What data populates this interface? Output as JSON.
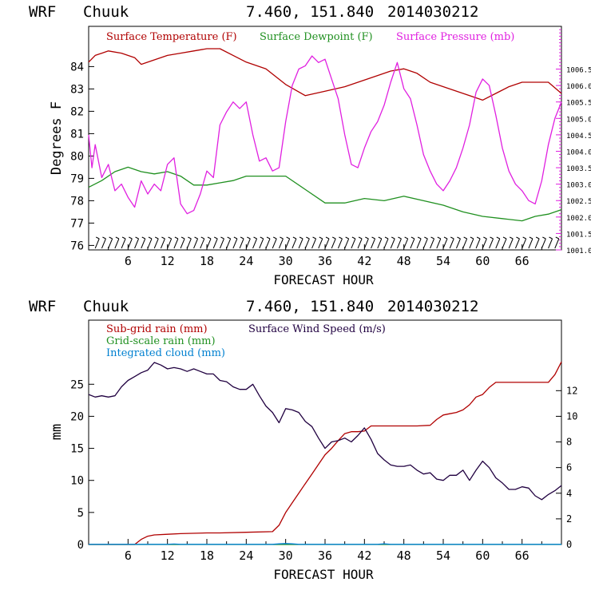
{
  "charts": [
    {
      "type": "line",
      "header": {
        "model": "WRF",
        "station": "Chuuk",
        "coords": "7.460, 151.840",
        "run": "2014030212"
      },
      "xlabel": "FORECAST HOUR",
      "ylabel": "Degrees F",
      "xlim": [
        0,
        72
      ],
      "xticks": [
        6,
        12,
        18,
        24,
        30,
        36,
        42,
        48,
        54,
        60,
        66
      ],
      "ylim_left": [
        75.8,
        85.8
      ],
      "yticks_left": [
        76,
        77,
        78,
        79,
        80,
        81,
        82,
        83,
        84
      ],
      "ylim_right": [
        1001.0,
        1007.8
      ],
      "yticks_right": [
        "1001.0",
        "1001.5",
        "1002.0",
        "1002.5",
        "1003.0",
        "1003.5",
        "1004.0",
        "1004.5",
        "1005.0",
        "1005.5",
        "1006.0",
        "1006.5"
      ],
      "wind_barbs": true,
      "series": [
        {
          "name": "Surface Temperature (F)",
          "color": "#b00000",
          "axis": "left",
          "x": [
            0,
            1,
            3,
            5,
            7,
            8,
            10,
            12,
            14,
            16,
            18,
            20,
            22,
            24,
            27,
            30,
            33,
            36,
            39,
            42,
            44,
            46,
            48,
            50,
            52,
            55,
            58,
            60,
            62,
            64,
            66,
            68,
            70,
            72
          ],
          "y": [
            84.2,
            84.5,
            84.7,
            84.6,
            84.4,
            84.1,
            84.3,
            84.5,
            84.6,
            84.7,
            84.8,
            84.8,
            84.5,
            84.2,
            83.9,
            83.2,
            82.7,
            82.9,
            83.1,
            83.4,
            83.6,
            83.8,
            83.9,
            83.7,
            83.3,
            83.0,
            82.7,
            82.5,
            82.8,
            83.1,
            83.3,
            83.3,
            83.3,
            82.8
          ]
        },
        {
          "name": "Surface Dewpoint (F)",
          "color": "#209020",
          "axis": "left",
          "x": [
            0,
            2,
            4,
            6,
            8,
            10,
            12,
            14,
            16,
            18,
            20,
            22,
            24,
            27,
            30,
            33,
            36,
            39,
            42,
            45,
            48,
            51,
            54,
            57,
            60,
            63,
            66,
            68,
            70,
            72
          ],
          "y": [
            78.6,
            78.9,
            79.3,
            79.5,
            79.3,
            79.2,
            79.3,
            79.1,
            78.7,
            78.7,
            78.8,
            78.9,
            79.1,
            79.1,
            79.1,
            78.5,
            77.9,
            77.9,
            78.1,
            78.0,
            78.2,
            78.0,
            77.8,
            77.5,
            77.3,
            77.2,
            77.1,
            77.3,
            77.4,
            77.6
          ]
        },
        {
          "name": "Surface Pressure (mb)",
          "color": "#e020e0",
          "axis": "right",
          "x": [
            0,
            0.5,
            1,
            2,
            3,
            4,
            5,
            6,
            7,
            8,
            9,
            10,
            11,
            12,
            13,
            14,
            15,
            16,
            17,
            18,
            19,
            20,
            21,
            22,
            23,
            24,
            25,
            26,
            27,
            28,
            29,
            30,
            31,
            32,
            33,
            34,
            35,
            36,
            37,
            38,
            39,
            40,
            41,
            42,
            43,
            44,
            45,
            46,
            47,
            48,
            49,
            50,
            51,
            52,
            53,
            54,
            55,
            56,
            57,
            58,
            59,
            60,
            61,
            62,
            63,
            64,
            65,
            66,
            67,
            68,
            69,
            70,
            71,
            72
          ],
          "y": [
            1004.5,
            1003.5,
            1004.2,
            1003.2,
            1003.6,
            1002.8,
            1003.0,
            1002.6,
            1002.3,
            1003.1,
            1002.7,
            1003.0,
            1002.8,
            1003.6,
            1003.8,
            1002.4,
            1002.1,
            1002.2,
            1002.7,
            1003.4,
            1003.2,
            1004.8,
            1005.2,
            1005.5,
            1005.3,
            1005.5,
            1004.5,
            1003.7,
            1003.8,
            1003.4,
            1003.5,
            1004.9,
            1006.0,
            1006.5,
            1006.6,
            1006.9,
            1006.7,
            1006.8,
            1006.2,
            1005.6,
            1004.5,
            1003.6,
            1003.5,
            1004.1,
            1004.6,
            1004.9,
            1005.4,
            1006.1,
            1006.7,
            1005.9,
            1005.6,
            1004.8,
            1003.9,
            1003.4,
            1003.0,
            1002.8,
            1003.1,
            1003.5,
            1004.1,
            1004.8,
            1005.8,
            1006.2,
            1006.0,
            1005.1,
            1004.1,
            1003.4,
            1003.0,
            1002.8,
            1002.5,
            1002.4,
            1003.1,
            1004.2,
            1005.0,
            1005.5
          ]
        }
      ]
    },
    {
      "type": "line",
      "header": {
        "model": "WRF",
        "station": "Chuuk",
        "coords": "7.460, 151.840",
        "run": "2014030212"
      },
      "xlabel": "FORECAST HOUR",
      "ylabel": "mm",
      "xlim": [
        0,
        72
      ],
      "xticks": [
        6,
        12,
        18,
        24,
        30,
        36,
        42,
        48,
        54,
        60,
        66
      ],
      "ylim_left": [
        0,
        35
      ],
      "yticks_left": [
        0,
        5,
        10,
        15,
        20,
        25
      ],
      "ylim_right": [
        0,
        17.5
      ],
      "yticks_right": [
        0,
        2,
        4,
        6,
        8,
        10,
        12
      ],
      "legend": [
        "Sub-grid rain (mm)",
        "Grid-scale rain (mm)",
        "Integrated cloud (mm)",
        "Surface Wind Speed (m/s)"
      ],
      "series": [
        {
          "name": "Sub-grid rain (mm)",
          "color": "#b00000",
          "axis": "left",
          "x": [
            0,
            7,
            8,
            9,
            10,
            12,
            14,
            18,
            20,
            24,
            28,
            29,
            30,
            31,
            32,
            33,
            34,
            35,
            36,
            37,
            38,
            39,
            40,
            41,
            42,
            43,
            44,
            45,
            48,
            50,
            52,
            53,
            54,
            55,
            56,
            57,
            58,
            59,
            60,
            61,
            62,
            64,
            66,
            68,
            70,
            71,
            72
          ],
          "y": [
            0,
            0,
            0.8,
            1.3,
            1.5,
            1.6,
            1.7,
            1.8,
            1.8,
            1.9,
            2.0,
            3.0,
            5.0,
            6.5,
            8.0,
            9.5,
            11.0,
            12.5,
            14.0,
            15.0,
            16.2,
            17.3,
            17.6,
            17.6,
            17.7,
            18.5,
            18.5,
            18.5,
            18.5,
            18.5,
            18.6,
            19.5,
            20.2,
            20.4,
            20.6,
            21.0,
            21.8,
            23.0,
            23.4,
            24.5,
            25.3,
            25.3,
            25.3,
            25.3,
            25.3,
            26.5,
            28.5
          ]
        },
        {
          "name": "Grid-scale rain (mm)",
          "color": "#209020",
          "axis": "left",
          "x": [
            0,
            72
          ],
          "y": [
            0,
            0
          ]
        },
        {
          "name": "Integrated cloud (mm)",
          "color": "#0080d0",
          "axis": "left",
          "x": [
            0,
            12,
            13,
            14,
            28,
            29,
            30,
            31,
            32,
            44,
            45,
            46,
            72
          ],
          "y": [
            0.02,
            0.02,
            0.08,
            0.02,
            0.02,
            0.1,
            0.15,
            0.1,
            0.02,
            0.02,
            0.1,
            0.02,
            0.02
          ]
        },
        {
          "name": "Surface Wind Speed (m/s)",
          "color": "#200040",
          "axis": "right",
          "x": [
            0,
            1,
            2,
            3,
            4,
            5,
            6,
            7,
            8,
            9,
            10,
            11,
            12,
            13,
            14,
            15,
            16,
            17,
            18,
            19,
            20,
            21,
            22,
            23,
            24,
            25,
            26,
            27,
            28,
            29,
            30,
            31,
            32,
            33,
            34,
            35,
            36,
            37,
            38,
            39,
            40,
            41,
            42,
            43,
            44,
            45,
            46,
            47,
            48,
            49,
            50,
            51,
            52,
            53,
            54,
            55,
            56,
            57,
            58,
            59,
            60,
            61,
            62,
            63,
            64,
            65,
            66,
            67,
            68,
            69,
            70,
            71,
            72
          ],
          "y": [
            11.7,
            11.5,
            11.6,
            11.5,
            11.6,
            12.3,
            12.8,
            13.1,
            13.4,
            13.6,
            14.2,
            14.0,
            13.7,
            13.8,
            13.7,
            13.5,
            13.7,
            13.5,
            13.3,
            13.3,
            12.8,
            12.7,
            12.3,
            12.1,
            12.1,
            12.5,
            11.6,
            10.8,
            10.3,
            9.5,
            10.6,
            10.5,
            10.3,
            9.6,
            9.2,
            8.3,
            7.5,
            8.0,
            8.1,
            8.3,
            8.0,
            8.5,
            9.1,
            8.2,
            7.1,
            6.6,
            6.2,
            6.1,
            6.1,
            6.2,
            5.8,
            5.5,
            5.6,
            5.1,
            5.0,
            5.4,
            5.4,
            5.8,
            5.0,
            5.8,
            6.5,
            6.0,
            5.2,
            4.8,
            4.3,
            4.3,
            4.5,
            4.4,
            3.8,
            3.5,
            3.9,
            4.2,
            4.6
          ]
        }
      ]
    }
  ]
}
